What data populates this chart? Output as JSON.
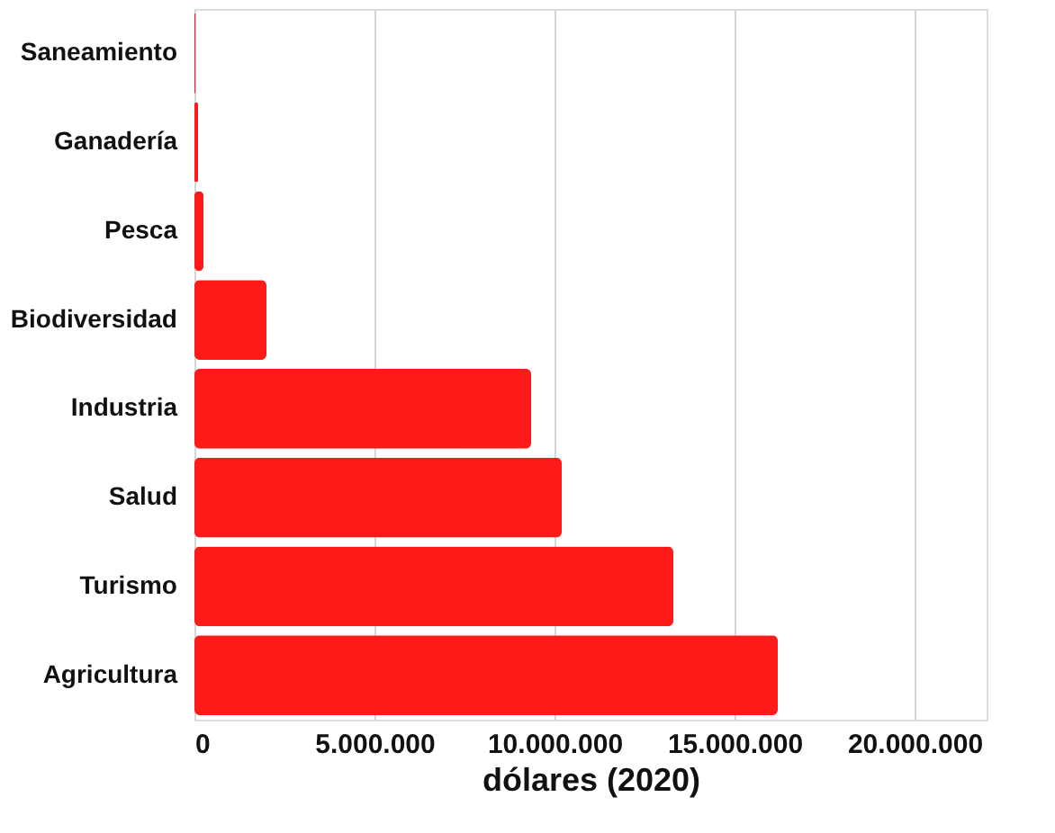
{
  "chart_data": {
    "type": "bar",
    "orientation": "horizontal",
    "xlabel": "dólares (2020)",
    "categories": [
      "Saneamiento",
      "Ganadería",
      "Pesca",
      "Biodiversidad",
      "Industria",
      "Salud",
      "Turismo",
      "Agricultura"
    ],
    "values": [
      30000,
      100000,
      250000,
      2000000,
      9350000,
      10200000,
      13300000,
      16200000
    ],
    "color": "#ff1a1a",
    "xlim": [
      0,
      22000000
    ],
    "xticks": [
      {
        "value": 0,
        "label": "0"
      },
      {
        "value": 5000000,
        "label": "5.000.000"
      },
      {
        "value": 10000000,
        "label": "10.000.000"
      },
      {
        "value": 15000000,
        "label": "15.000.000"
      },
      {
        "value": 20000000,
        "label": "20.000.000"
      }
    ],
    "grid": "x"
  }
}
